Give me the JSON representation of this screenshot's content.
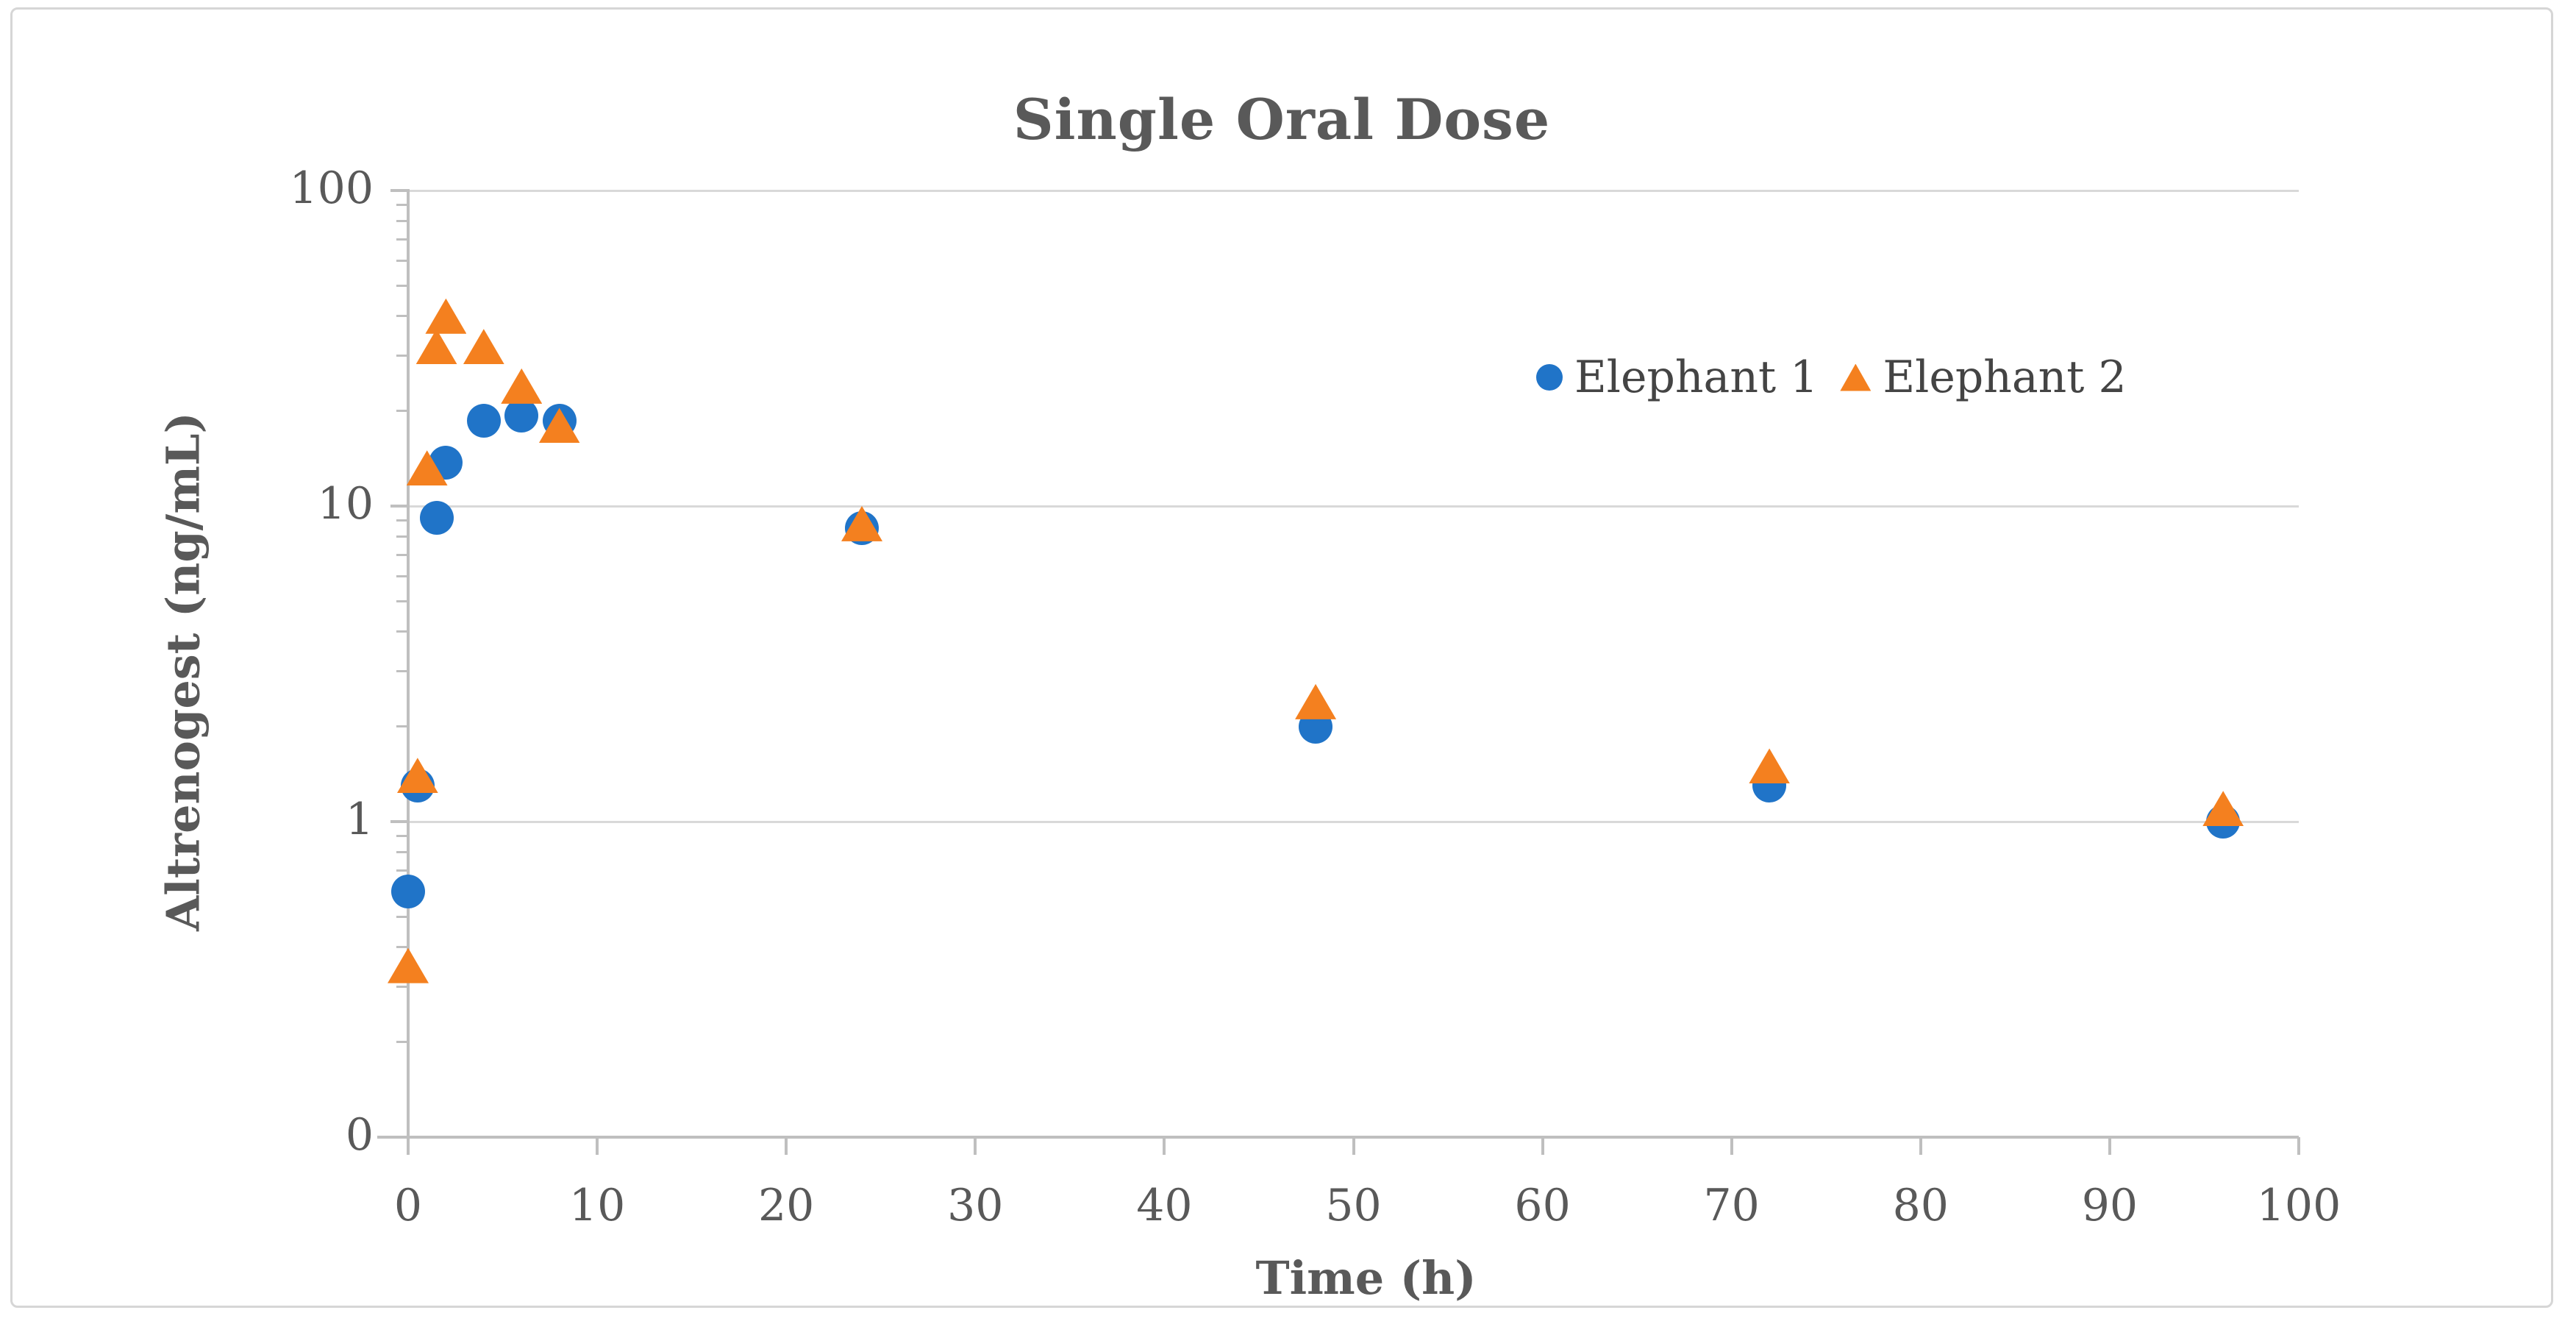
{
  "header": {
    "title": "Single Oral Dose"
  },
  "colors": {
    "series1_blue": "#2074c8",
    "series2_orange": "#f4801f",
    "text_gray": "#595959",
    "legend_text": "#444444",
    "gridline": "#d9d9d9",
    "axis_line": "#bfbfbf",
    "frame_border": "#d6d6d6",
    "background": "#ffffff"
  },
  "legend": [
    {
      "label": "Elephant 1",
      "marker": "circle",
      "color": "#2074c8"
    },
    {
      "label": "Elephant 2",
      "marker": "triangle",
      "color": "#f4801f"
    }
  ],
  "chart_data": {
    "type": "scatter",
    "title": "Single Oral Dose",
    "xlabel": "Time (h)",
    "ylabel": "Altrenogest (ng/mL)",
    "x_axis": {
      "scale": "linear",
      "range": [
        0,
        100
      ],
      "tick_values": [
        0,
        10,
        20,
        30,
        40,
        50,
        60,
        70,
        80,
        90,
        100
      ],
      "tick_labels": [
        "0",
        "10",
        "20",
        "30",
        "40",
        "50",
        "60",
        "70",
        "80",
        "90",
        "100"
      ]
    },
    "y_axis": {
      "scale": "log",
      "range": [
        0.1,
        100
      ],
      "tick_values": [
        100,
        10,
        1,
        0.1
      ],
      "tick_labels": [
        "100",
        "10",
        "1",
        "0"
      ],
      "minor_ticks_per_decade": [
        2,
        3,
        4,
        5,
        6,
        7,
        8,
        9
      ]
    },
    "grid": "horizontal-major-only",
    "legend_position": "inside-upper-right",
    "series": [
      {
        "name": "Elephant 1",
        "marker": "circle",
        "color": "#2074c8",
        "points": [
          {
            "x": 0,
            "y": 0.6
          },
          {
            "x": 0.5,
            "y": 1.3
          },
          {
            "x": 1.5,
            "y": 9.2
          },
          {
            "x": 2,
            "y": 13.7
          },
          {
            "x": 4,
            "y": 18.6
          },
          {
            "x": 6,
            "y": 19.4
          },
          {
            "x": 8,
            "y": 18.6
          },
          {
            "x": 24,
            "y": 8.5
          },
          {
            "x": 48,
            "y": 2.0
          },
          {
            "x": 72,
            "y": 1.3
          },
          {
            "x": 96,
            "y": 1.0
          }
        ]
      },
      {
        "name": "Elephant 2",
        "marker": "triangle",
        "color": "#f4801f",
        "points": [
          {
            "x": 0,
            "y": 0.35
          },
          {
            "x": 0.5,
            "y": 1.4
          },
          {
            "x": 1,
            "y": 13.2
          },
          {
            "x": 1.5,
            "y": 32
          },
          {
            "x": 2,
            "y": 40
          },
          {
            "x": 4,
            "y": 32
          },
          {
            "x": 6,
            "y": 24
          },
          {
            "x": 8,
            "y": 18
          },
          {
            "x": 24,
            "y": 8.8
          },
          {
            "x": 48,
            "y": 2.4
          },
          {
            "x": 72,
            "y": 1.5
          },
          {
            "x": 96,
            "y": 1.1
          }
        ]
      }
    ]
  }
}
